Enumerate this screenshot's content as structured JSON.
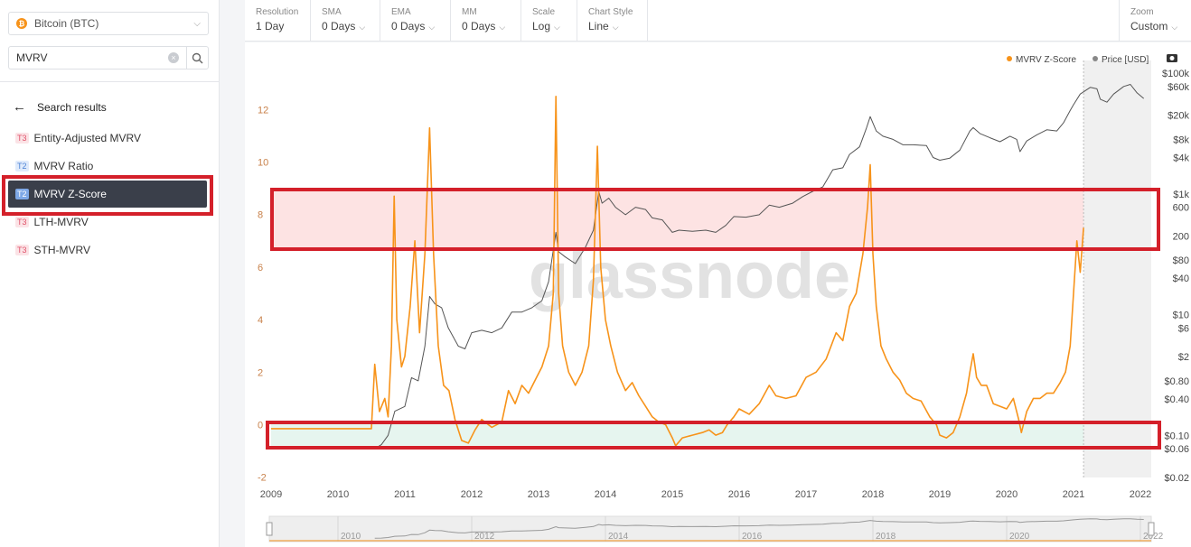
{
  "sidebar": {
    "asset": "Bitcoin (BTC)",
    "search_value": "MVRV",
    "results_header": "Search results",
    "results": [
      {
        "tier": "T3",
        "label": "Entity-Adjusted MVRV"
      },
      {
        "tier": "T2",
        "label": "MVRV Ratio"
      },
      {
        "tier": "T2",
        "label": "MVRV Z-Score"
      },
      {
        "tier": "T3",
        "label": "LTH-MVRV"
      },
      {
        "tier": "T3",
        "label": "STH-MVRV"
      }
    ]
  },
  "toolbar": {
    "items": [
      {
        "label": "Resolution",
        "value": "1 Day"
      },
      {
        "label": "SMA",
        "value": "0 Days"
      },
      {
        "label": "EMA",
        "value": "0 Days"
      },
      {
        "label": "MM",
        "value": "0 Days"
      },
      {
        "label": "Scale",
        "value": "Log"
      },
      {
        "label": "Chart Style",
        "value": "Line"
      }
    ],
    "zoom": {
      "label": "Zoom",
      "value": "Custom"
    }
  },
  "watermark": "glassnode",
  "colors": {
    "zscore": "#f7931a",
    "price": "#555555",
    "highlight": "#d4202a",
    "red_zone": "#fde3e3",
    "green_zone": "#e6f5ef"
  },
  "chart_data": {
    "type": "line",
    "legend": [
      "MVRV Z-Score",
      "Price [USD]"
    ],
    "legend_position": "top-right",
    "x_ticks": [
      "2009",
      "2010",
      "2011",
      "2012",
      "2013",
      "2014",
      "2015",
      "2016",
      "2017",
      "2018",
      "2019",
      "2020",
      "2021",
      "2022"
    ],
    "navigator_ticks": [
      "2010",
      "2012",
      "2014",
      "2016",
      "2018",
      "2020",
      "2022"
    ],
    "y_left_ticks": [
      "12",
      "10",
      "8",
      "6",
      "4",
      "2",
      "0",
      "-2"
    ],
    "y_left_range": [
      -2,
      13
    ],
    "y_right_ticks": [
      "$100k",
      "$60k",
      "$20k",
      "$8k",
      "$4k",
      "$1k",
      "600",
      "200",
      "$80",
      "$40",
      "$10",
      "$6",
      "$2",
      "$0.80",
      "$0.40",
      "$0.10",
      "$0.06",
      "$0.02"
    ],
    "y_right_scale": "log",
    "y_right_range": [
      0.02,
      100000
    ],
    "zones": {
      "red": [
        6.7,
        8.9
      ],
      "green": [
        -0.8,
        0.1
      ]
    },
    "series": [
      {
        "name": "MVRV Z-Score",
        "points": [
          [
            2009.0,
            -0.15
          ],
          [
            2010.0,
            -0.15
          ],
          [
            2010.5,
            -0.15
          ],
          [
            2010.55,
            2.3
          ],
          [
            2010.62,
            0.5
          ],
          [
            2010.7,
            1.0
          ],
          [
            2010.75,
            0.3
          ],
          [
            2010.8,
            3.0
          ],
          [
            2010.84,
            8.7
          ],
          [
            2010.88,
            4.0
          ],
          [
            2010.95,
            2.2
          ],
          [
            2011.0,
            2.6
          ],
          [
            2011.08,
            4.5
          ],
          [
            2011.15,
            7.0
          ],
          [
            2011.22,
            3.5
          ],
          [
            2011.3,
            6.5
          ],
          [
            2011.37,
            11.3
          ],
          [
            2011.43,
            6.5
          ],
          [
            2011.5,
            3.0
          ],
          [
            2011.58,
            1.5
          ],
          [
            2011.66,
            1.3
          ],
          [
            2011.75,
            0.2
          ],
          [
            2011.85,
            -0.6
          ],
          [
            2011.95,
            -0.7
          ],
          [
            2012.05,
            -0.2
          ],
          [
            2012.15,
            0.2
          ],
          [
            2012.3,
            -0.1
          ],
          [
            2012.45,
            0.1
          ],
          [
            2012.55,
            1.3
          ],
          [
            2012.65,
            0.8
          ],
          [
            2012.75,
            1.5
          ],
          [
            2012.85,
            1.2
          ],
          [
            2012.95,
            1.7
          ],
          [
            2013.05,
            2.2
          ],
          [
            2013.15,
            3.0
          ],
          [
            2013.22,
            5.0
          ],
          [
            2013.26,
            12.5
          ],
          [
            2013.3,
            5.0
          ],
          [
            2013.36,
            3.0
          ],
          [
            2013.45,
            2.0
          ],
          [
            2013.55,
            1.5
          ],
          [
            2013.65,
            2.0
          ],
          [
            2013.75,
            3.0
          ],
          [
            2013.82,
            5.5
          ],
          [
            2013.88,
            10.6
          ],
          [
            2013.93,
            6.0
          ],
          [
            2014.0,
            4.0
          ],
          [
            2014.08,
            3.0
          ],
          [
            2014.18,
            2.0
          ],
          [
            2014.3,
            1.3
          ],
          [
            2014.4,
            1.6
          ],
          [
            2014.5,
            1.1
          ],
          [
            2014.6,
            0.7
          ],
          [
            2014.7,
            0.3
          ],
          [
            2014.8,
            0.1
          ],
          [
            2014.9,
            0.0
          ],
          [
            2015.0,
            -0.5
          ],
          [
            2015.05,
            -0.8
          ],
          [
            2015.15,
            -0.5
          ],
          [
            2015.3,
            -0.4
          ],
          [
            2015.45,
            -0.3
          ],
          [
            2015.55,
            -0.2
          ],
          [
            2015.65,
            -0.4
          ],
          [
            2015.75,
            -0.3
          ],
          [
            2015.82,
            0.0
          ],
          [
            2015.92,
            0.3
          ],
          [
            2016.0,
            0.6
          ],
          [
            2016.15,
            0.4
          ],
          [
            2016.3,
            0.8
          ],
          [
            2016.45,
            1.5
          ],
          [
            2016.55,
            1.1
          ],
          [
            2016.7,
            1.0
          ],
          [
            2016.85,
            1.1
          ],
          [
            2017.0,
            1.8
          ],
          [
            2017.15,
            2.0
          ],
          [
            2017.3,
            2.5
          ],
          [
            2017.45,
            3.5
          ],
          [
            2017.55,
            3.2
          ],
          [
            2017.65,
            4.5
          ],
          [
            2017.75,
            5.0
          ],
          [
            2017.85,
            6.5
          ],
          [
            2017.92,
            8.3
          ],
          [
            2017.96,
            9.9
          ],
          [
            2018.0,
            6.5
          ],
          [
            2018.05,
            4.5
          ],
          [
            2018.12,
            3.0
          ],
          [
            2018.2,
            2.5
          ],
          [
            2018.3,
            2.0
          ],
          [
            2018.4,
            1.7
          ],
          [
            2018.5,
            1.2
          ],
          [
            2018.6,
            1.0
          ],
          [
            2018.72,
            0.9
          ],
          [
            2018.85,
            0.3
          ],
          [
            2018.95,
            0.0
          ],
          [
            2019.0,
            -0.4
          ],
          [
            2019.1,
            -0.5
          ],
          [
            2019.2,
            -0.3
          ],
          [
            2019.3,
            0.3
          ],
          [
            2019.4,
            1.2
          ],
          [
            2019.45,
            2.0
          ],
          [
            2019.5,
            2.7
          ],
          [
            2019.55,
            1.8
          ],
          [
            2019.62,
            1.5
          ],
          [
            2019.7,
            1.5
          ],
          [
            2019.8,
            0.8
          ],
          [
            2019.9,
            0.7
          ],
          [
            2020.0,
            0.6
          ],
          [
            2020.1,
            1.0
          ],
          [
            2020.18,
            0.2
          ],
          [
            2020.22,
            -0.3
          ],
          [
            2020.3,
            0.5
          ],
          [
            2020.4,
            1.0
          ],
          [
            2020.5,
            1.0
          ],
          [
            2020.6,
            1.2
          ],
          [
            2020.7,
            1.2
          ],
          [
            2020.8,
            1.6
          ],
          [
            2020.88,
            2.0
          ],
          [
            2020.95,
            3.0
          ],
          [
            2021.0,
            5.0
          ],
          [
            2021.05,
            7.0
          ],
          [
            2021.1,
            5.8
          ],
          [
            2021.15,
            7.5
          ]
        ]
      },
      {
        "name": "Price [USD]",
        "points": [
          [
            2010.55,
            0.06
          ],
          [
            2010.65,
            0.07
          ],
          [
            2010.75,
            0.1
          ],
          [
            2010.85,
            0.25
          ],
          [
            2011.0,
            0.3
          ],
          [
            2011.1,
            0.9
          ],
          [
            2011.2,
            0.8
          ],
          [
            2011.3,
            3
          ],
          [
            2011.37,
            20
          ],
          [
            2011.45,
            15
          ],
          [
            2011.55,
            13
          ],
          [
            2011.65,
            6
          ],
          [
            2011.8,
            3
          ],
          [
            2011.9,
            2.7
          ],
          [
            2012.0,
            5
          ],
          [
            2012.15,
            5.5
          ],
          [
            2012.3,
            5
          ],
          [
            2012.45,
            6
          ],
          [
            2012.6,
            11
          ],
          [
            2012.75,
            11
          ],
          [
            2012.9,
            13
          ],
          [
            2013.05,
            17
          ],
          [
            2013.15,
            35
          ],
          [
            2013.26,
            230
          ],
          [
            2013.3,
            110
          ],
          [
            2013.4,
            90
          ],
          [
            2013.55,
            70
          ],
          [
            2013.7,
            130
          ],
          [
            2013.82,
            250
          ],
          [
            2013.9,
            1100
          ],
          [
            2013.95,
            700
          ],
          [
            2014.05,
            850
          ],
          [
            2014.15,
            600
          ],
          [
            2014.3,
            450
          ],
          [
            2014.45,
            600
          ],
          [
            2014.6,
            550
          ],
          [
            2014.7,
            400
          ],
          [
            2014.85,
            370
          ],
          [
            2015.0,
            230
          ],
          [
            2015.1,
            250
          ],
          [
            2015.3,
            240
          ],
          [
            2015.5,
            250
          ],
          [
            2015.65,
            230
          ],
          [
            2015.8,
            300
          ],
          [
            2015.92,
            420
          ],
          [
            2016.1,
            410
          ],
          [
            2016.3,
            450
          ],
          [
            2016.45,
            650
          ],
          [
            2016.6,
            600
          ],
          [
            2016.8,
            700
          ],
          [
            2016.95,
            900
          ],
          [
            2017.1,
            1100
          ],
          [
            2017.25,
            1300
          ],
          [
            2017.4,
            2500
          ],
          [
            2017.55,
            2700
          ],
          [
            2017.65,
            4500
          ],
          [
            2017.8,
            6000
          ],
          [
            2017.9,
            12000
          ],
          [
            2017.96,
            19000
          ],
          [
            2018.05,
            11000
          ],
          [
            2018.15,
            9000
          ],
          [
            2018.3,
            8000
          ],
          [
            2018.45,
            6500
          ],
          [
            2018.6,
            6500
          ],
          [
            2018.8,
            6300
          ],
          [
            2018.9,
            4000
          ],
          [
            2019.0,
            3600
          ],
          [
            2019.15,
            3900
          ],
          [
            2019.3,
            5300
          ],
          [
            2019.45,
            11000
          ],
          [
            2019.5,
            12500
          ],
          [
            2019.6,
            10000
          ],
          [
            2019.75,
            8500
          ],
          [
            2019.9,
            7300
          ],
          [
            2020.05,
            9000
          ],
          [
            2020.15,
            8000
          ],
          [
            2020.2,
            5000
          ],
          [
            2020.3,
            7500
          ],
          [
            2020.45,
            9500
          ],
          [
            2020.6,
            11500
          ],
          [
            2020.75,
            11000
          ],
          [
            2020.85,
            15000
          ],
          [
            2020.95,
            24000
          ],
          [
            2021.0,
            30000
          ],
          [
            2021.1,
            45000
          ],
          [
            2021.25,
            58000
          ],
          [
            2021.35,
            55000
          ],
          [
            2021.4,
            37000
          ],
          [
            2021.5,
            33000
          ],
          [
            2021.6,
            45000
          ],
          [
            2021.75,
            60000
          ],
          [
            2021.85,
            65000
          ],
          [
            2021.95,
            47000
          ],
          [
            2022.05,
            38000
          ]
        ]
      }
    ]
  }
}
